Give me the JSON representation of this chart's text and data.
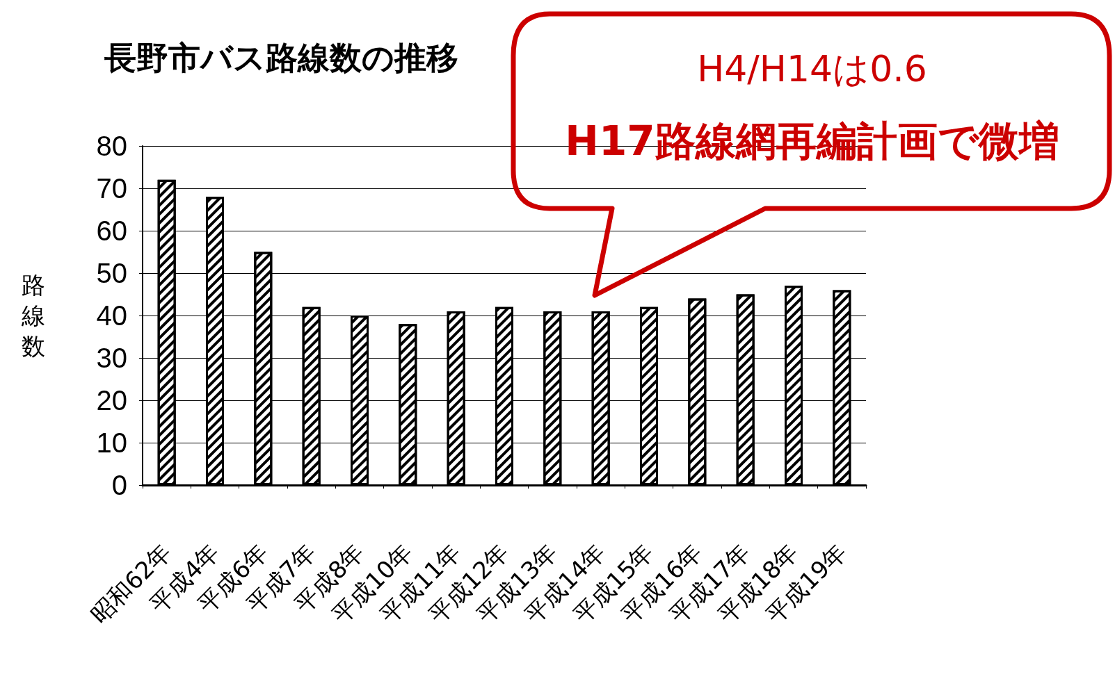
{
  "chart_data": {
    "type": "bar",
    "title": "長野市バス路線数の推移",
    "ylabel": "路線数",
    "categories": [
      "昭和62年",
      "平成4年",
      "平成6年",
      "平成7年",
      "平成8年",
      "平成10年",
      "平成11年",
      "平成12年",
      "平成13年",
      "平成14年",
      "平成15年",
      "平成16年",
      "平成17年",
      "平成18年",
      "平成19年"
    ],
    "values": [
      72,
      68,
      55,
      42,
      40,
      38,
      41,
      42,
      41,
      41,
      42,
      44,
      45,
      47,
      46
    ],
    "color": "#000000",
    "ylim": [
      0,
      80
    ],
    "yticks": [
      0,
      10,
      20,
      30,
      40,
      50,
      60,
      70,
      80
    ],
    "grid": "y",
    "annotations": [
      "H4/H14は0.6",
      "H17路線網再編計画で微増"
    ]
  }
}
